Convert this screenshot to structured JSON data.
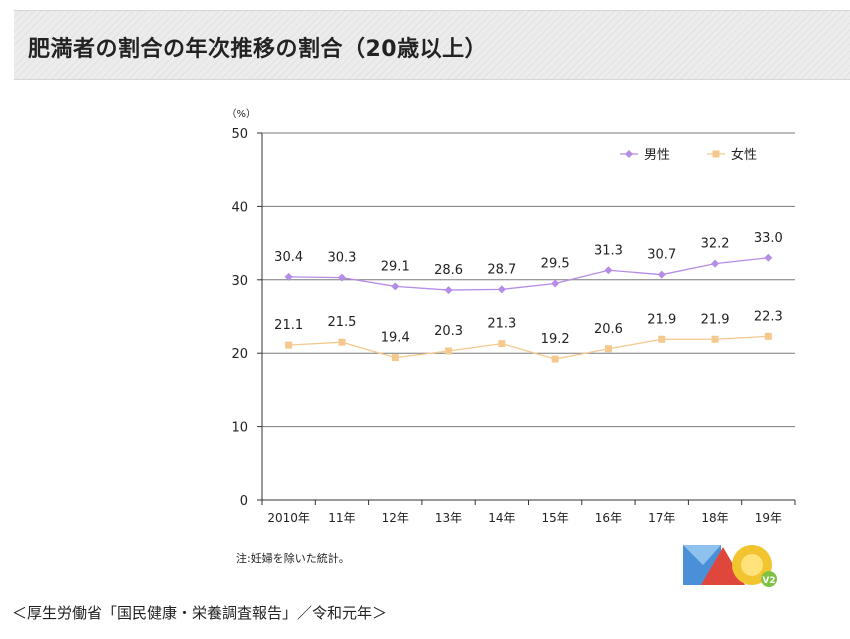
{
  "title": "肥満者の割合の年次推移の割合（20歳以上）",
  "note": "注:妊婦を除いた統計。",
  "source": "＜厚生労働省「国民健康・栄養調査報告」／令和元年＞",
  "chart_data": {
    "type": "line",
    "unit_label": "（%）",
    "categories": [
      "2010年",
      "11年",
      "12年",
      "13年",
      "14年",
      "15年",
      "16年",
      "17年",
      "18年",
      "19年"
    ],
    "ylim": [
      0,
      50
    ],
    "yticks": [
      0,
      10,
      20,
      30,
      40,
      50
    ],
    "grid": true,
    "legend_position": "top-right",
    "series": [
      {
        "name": "男性",
        "color": "#b58ce6",
        "marker": "diamond",
        "values": [
          30.4,
          30.3,
          29.1,
          28.6,
          28.7,
          29.5,
          31.3,
          30.7,
          32.2,
          33.0
        ],
        "labels": [
          "30.4",
          "30.3",
          "29.1",
          "28.6",
          "28.7",
          "29.5",
          "31.3",
          "30.7",
          "32.2",
          "33.0"
        ]
      },
      {
        "name": "女性",
        "color": "#f5c88e",
        "marker": "square",
        "values": [
          21.1,
          21.5,
          19.4,
          20.3,
          21.3,
          19.2,
          20.6,
          21.9,
          21.9,
          22.3
        ],
        "labels": [
          "21.1",
          "21.5",
          "19.4",
          "20.3",
          "21.3",
          "19.2",
          "20.6",
          "21.9",
          "21.9",
          "22.3"
        ]
      }
    ]
  },
  "logo": {
    "badge_text": "V2",
    "colors": [
      "#4a90d9",
      "#e0473c",
      "#f2c530",
      "#7dc242"
    ]
  }
}
